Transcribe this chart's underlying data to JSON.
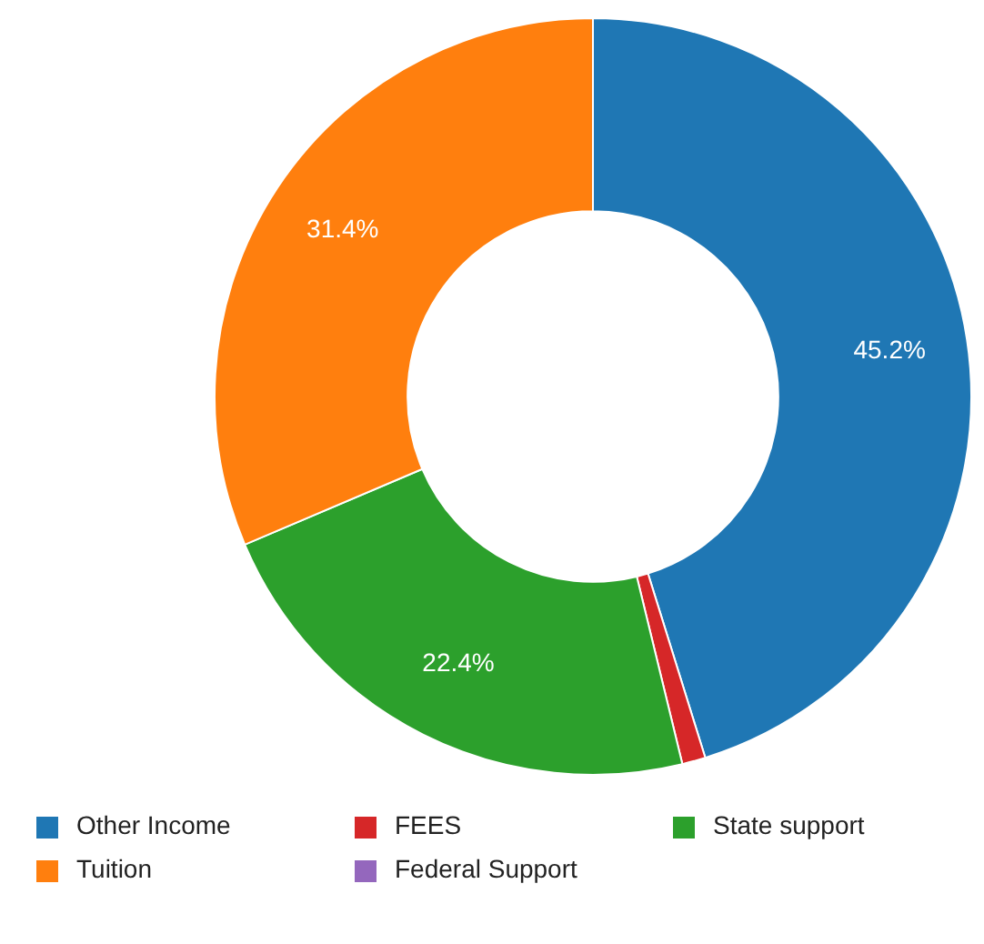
{
  "chart_data": {
    "type": "donut",
    "categories": [
      "Other Income",
      "FEES",
      "State support",
      "Tuition",
      "Federal Support"
    ],
    "values": [
      45.2,
      1.0,
      22.4,
      31.4,
      0
    ],
    "colors": [
      "#1f77b4",
      "#d62728",
      "#2ca02c",
      "#ff7f0e",
      "#9467bd"
    ],
    "value_labels": [
      "45.2%",
      null,
      "22.4%",
      "31.4%",
      null
    ],
    "legend": "bottom"
  }
}
